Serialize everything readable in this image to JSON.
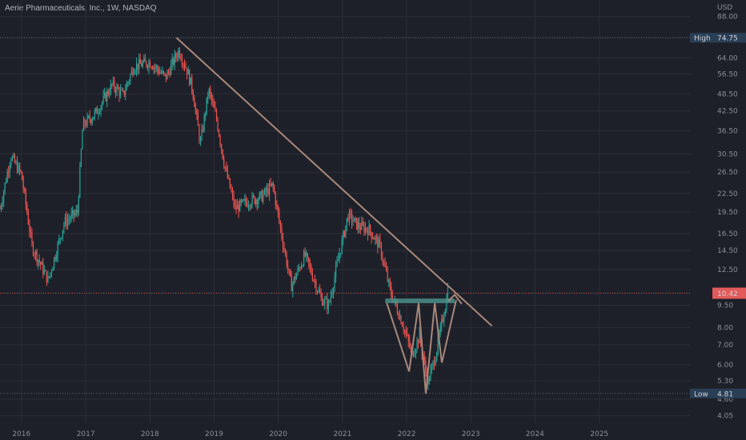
{
  "header": {
    "title": "Aerie Pharmaceuticals, Inc., 1W, NASDAQ",
    "currency": "USD"
  },
  "colors": {
    "background": "#1e2029",
    "grid": "#2a2d37",
    "up": "#26a69a",
    "down": "#ef5350",
    "trendline": "#a8887a",
    "zone": "#4a8f8a",
    "axis_text": "#8b8e97"
  },
  "markers": {
    "high": {
      "label": "High",
      "value": "74.75"
    },
    "low": {
      "label": "Low",
      "value": "4.81"
    },
    "last": {
      "value": "10.42"
    }
  },
  "chart_data": {
    "type": "candlestick",
    "title": "Aerie Pharmaceuticals, Inc., 1W, NASDAQ",
    "xlabel": "",
    "ylabel": "USD",
    "y_scale": "log",
    "ylim": [
      3.8,
      100
    ],
    "xlim": [
      "2015-09-01",
      "2026-06-01"
    ],
    "y_ticks": [
      "4.05",
      "4.60",
      "5.30",
      "6.00",
      "7.00",
      "8.00",
      "9.50",
      "10.42",
      "12.50",
      "14.50",
      "16.50",
      "19.50",
      "22.50",
      "26.50",
      "30.50",
      "36.50",
      "42.50",
      "48.50",
      "56.50",
      "64.00",
      "74.75",
      "88.00"
    ],
    "x_ticks": [
      "2016",
      "2017",
      "2018",
      "2019",
      "2020",
      "2021",
      "2022",
      "2023",
      "2024",
      "2025"
    ],
    "grid": true,
    "price_path": [
      [
        "2015-09-01",
        20
      ],
      [
        "2015-11-01",
        30
      ],
      [
        "2016-01-01",
        26
      ],
      [
        "2016-03-01",
        15
      ],
      [
        "2016-06-01",
        11.5
      ],
      [
        "2016-09-01",
        18
      ],
      [
        "2016-11-15",
        19.5
      ],
      [
        "2016-12-15",
        38
      ],
      [
        "2017-03-01",
        42
      ],
      [
        "2017-06-01",
        52
      ],
      [
        "2017-08-01",
        48
      ],
      [
        "2017-10-01",
        60
      ],
      [
        "2018-01-01",
        62
      ],
      [
        "2018-04-01",
        55
      ],
      [
        "2018-06-15",
        68
      ],
      [
        "2018-08-01",
        58
      ],
      [
        "2018-09-01",
        50
      ],
      [
        "2018-10-15",
        33
      ],
      [
        "2018-12-01",
        50
      ],
      [
        "2019-01-15",
        40
      ],
      [
        "2019-03-01",
        28
      ],
      [
        "2019-05-01",
        20
      ],
      [
        "2019-07-01",
        21
      ],
      [
        "2019-10-01",
        22
      ],
      [
        "2019-12-01",
        24
      ],
      [
        "2020-02-01",
        15
      ],
      [
        "2020-03-15",
        11
      ],
      [
        "2020-06-01",
        14
      ],
      [
        "2020-09-01",
        10
      ],
      [
        "2020-10-15",
        9.5
      ],
      [
        "2020-12-01",
        13
      ],
      [
        "2021-02-01",
        19
      ],
      [
        "2021-04-01",
        17.5
      ],
      [
        "2021-06-01",
        17
      ],
      [
        "2021-08-01",
        15
      ],
      [
        "2021-10-01",
        10.5
      ],
      [
        "2021-12-01",
        8.5
      ],
      [
        "2022-02-01",
        6.5
      ],
      [
        "2022-03-15",
        7.5
      ],
      [
        "2022-05-01",
        5.2
      ],
      [
        "2022-06-15",
        6.5
      ],
      [
        "2022-08-01",
        9
      ],
      [
        "2022-08-25",
        10.42
      ]
    ],
    "annotations": {
      "trendline": [
        [
          "2018-06-01",
          74.75
        ],
        [
          "2023-05-01",
          8.1
        ]
      ],
      "resistance_zone": {
        "from": "2021-09-01",
        "to": "2022-10-01",
        "y_low": 9.65,
        "y_high": 10.0
      },
      "w_pattern": [
        [
          "2021-09-10",
          9.65
        ],
        [
          "2022-01-15",
          5.7
        ],
        [
          "2022-03-10",
          9.65
        ],
        [
          "2022-04-20",
          4.8
        ],
        [
          "2022-06-10",
          9.65
        ],
        [
          "2022-07-20",
          6.1
        ],
        [
          "2022-10-10",
          9.9
        ]
      ],
      "arrow": [
        [
          "2022-10-01",
          10.3
        ],
        [
          "2022-11-10",
          9.6
        ]
      ]
    }
  }
}
